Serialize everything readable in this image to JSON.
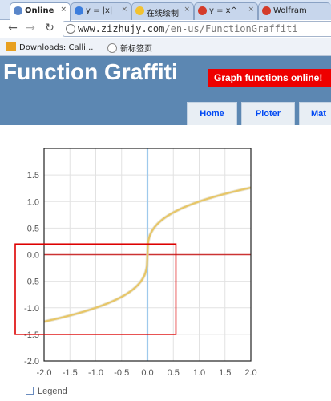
{
  "browser": {
    "tabs": [
      {
        "label": "Online",
        "close": "×",
        "icon_color": "#5a86c9",
        "active": true
      },
      {
        "label": "y = |x|",
        "close": "×",
        "icon_color": "#3b7ddd",
        "active": false
      },
      {
        "label": "在线绘制",
        "close": "×",
        "icon_color": "#f2c230",
        "active": false
      },
      {
        "label": "y = x^",
        "close": "×",
        "icon_color": "#d43b2a",
        "active": false
      },
      {
        "label": "Wolfram",
        "close": "×",
        "icon_color": "#d43b2a",
        "active": false
      }
    ],
    "back": "←",
    "forward": "→",
    "reload": "↻",
    "url_host": "www.zizhujy.com",
    "url_path": "/en-us/FunctionGraffiti",
    "bookmarks": [
      {
        "label": "Downloads: Calli...",
        "icon_color": "#e8a020"
      },
      {
        "label": "新标签页",
        "icon_color": "#888888"
      }
    ]
  },
  "site": {
    "title": "Function Graffiti",
    "promo": "Graph functions online!",
    "nav": [
      "Home",
      "Ploter",
      "Mat"
    ],
    "header_color": "#5c87b2",
    "promo_color": "#ee0000"
  },
  "chart_data": {
    "type": "line",
    "title": "",
    "xlabel": "",
    "ylabel": "",
    "xlim": [
      -2.0,
      2.0
    ],
    "ylim": [
      -2.0,
      2.0
    ],
    "x_ticks": [
      "-2.0",
      "-1.5",
      "-1.0",
      "-0.5",
      "0.0",
      "0.5",
      "1.0",
      "1.5",
      "2.0"
    ],
    "y_ticks": [
      "1.5",
      "1.0",
      "0.5",
      "0.0",
      "-0.5",
      "-1.0",
      "-1.5",
      "-2.0"
    ],
    "grid": true,
    "series": [
      {
        "color": "#e7c667",
        "x": [
          -2.0,
          -1.5,
          -1.0,
          -0.5,
          -0.25,
          -0.1,
          -0.02,
          0.0,
          0.02,
          0.1,
          0.25,
          0.5,
          1.0,
          1.5,
          2.0
        ],
        "y": [
          -1.26,
          -1.14,
          -1.0,
          -0.79,
          -0.63,
          -0.46,
          -0.27,
          0.0,
          0.27,
          0.46,
          0.63,
          0.79,
          1.0,
          1.14,
          1.26
        ]
      }
    ],
    "x_axis_color": "#cc3333",
    "y_axis_color": "#9ec9ec",
    "highlight": {
      "x": [
        -2.6,
        0.55
      ],
      "y": [
        -1.5,
        0.2
      ],
      "color": "#dd0000"
    },
    "legend": "Legend"
  }
}
